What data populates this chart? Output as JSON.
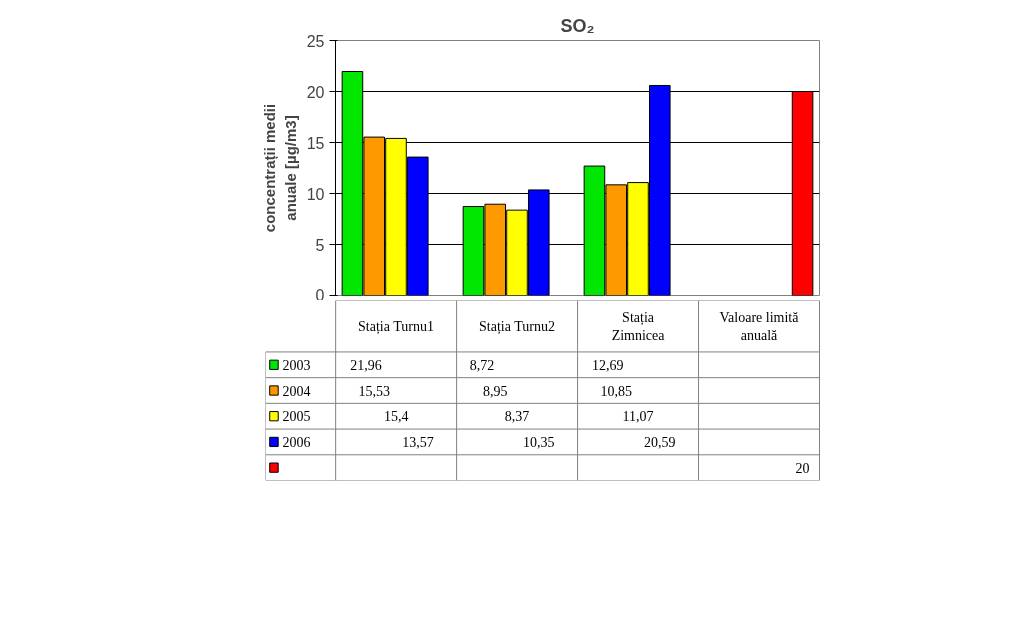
{
  "chart_data": {
    "type": "bar",
    "title": "SO₂",
    "ylabel": "concentrații medii anuale [µg/m3]",
    "categories": [
      "Stația Turnu1",
      "Stația Turnu2",
      "Stația Zimnicea",
      "Valoare limită anuală"
    ],
    "series": [
      {
        "name": "2003",
        "color": "#00e600",
        "values": [
          21.96,
          8.72,
          12.69,
          null
        ],
        "value_labels": [
          "21,96",
          "8,72",
          "12,69",
          null
        ]
      },
      {
        "name": "2004",
        "color": "#ff9900",
        "values": [
          15.53,
          8.95,
          10.85,
          null
        ],
        "value_labels": [
          "15,53",
          "8,95",
          "10,85",
          null
        ]
      },
      {
        "name": "2005",
        "color": "#ffff00",
        "values": [
          15.4,
          8.37,
          11.07,
          null
        ],
        "value_labels": [
          "15,4",
          "8,37",
          "11,07",
          null
        ]
      },
      {
        "name": "2006",
        "color": "#0000ff",
        "values": [
          13.57,
          10.35,
          20.59,
          null
        ],
        "value_labels": [
          "13,57",
          "10,35",
          "20,59",
          null
        ]
      },
      {
        "color": "#ff0000",
        "values": [
          null,
          null,
          null,
          20
        ],
        "value_labels": [
          null,
          null,
          null,
          "20"
        ]
      }
    ],
    "ylim": [
      0,
      25
    ],
    "yticks": [
      0,
      5,
      10,
      15,
      20,
      25
    ],
    "grid": "y",
    "legend": "bottom"
  }
}
